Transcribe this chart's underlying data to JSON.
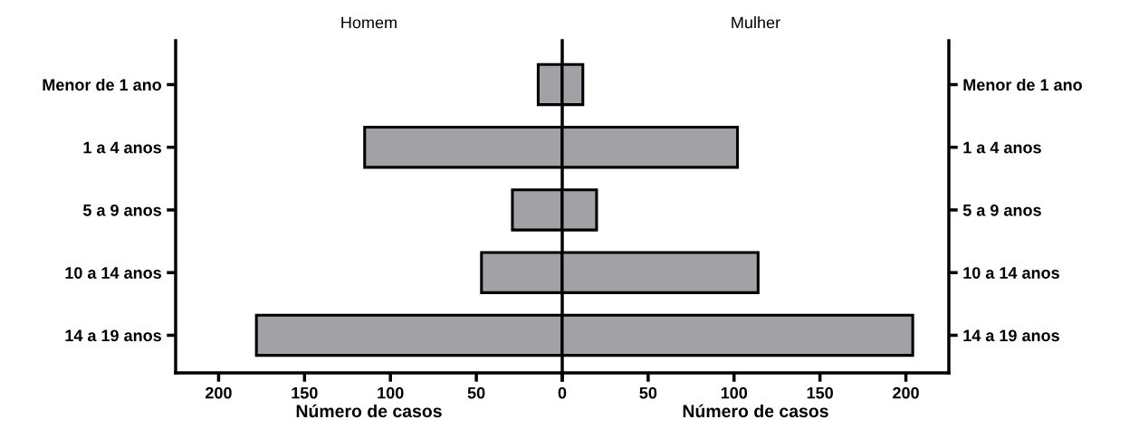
{
  "chart_data": [
    {
      "type": "bar",
      "orientation": "horizontal",
      "title": "Homem",
      "xlabel": "Número de casos",
      "categories": [
        "Menor de 1 ano",
        "1 a 4 anos",
        "5 a 9 anos",
        "10 a 14 anos",
        "14 a 19 anos"
      ],
      "values": [
        14,
        115,
        29,
        47,
        178
      ],
      "color": "#a2a1a6",
      "xlim": [
        225,
        0
      ],
      "xticks": [
        200,
        150,
        100,
        50,
        {
          "value": 0,
          "label": null
        }
      ]
    },
    {
      "type": "bar",
      "orientation": "horizontal",
      "title": "Mulher",
      "xlabel": "Número de casos",
      "categories": [
        "Menor de 1 ano",
        "1 a 4 anos",
        "5 a 9 anos",
        "10 a 14 anos",
        "14 a 19 anos"
      ],
      "values": [
        12,
        102,
        20,
        114,
        204
      ],
      "color": "#a2a1a6",
      "xlim": [
        0,
        225
      ],
      "xticks": [
        0,
        50,
        100,
        150,
        200
      ]
    }
  ]
}
